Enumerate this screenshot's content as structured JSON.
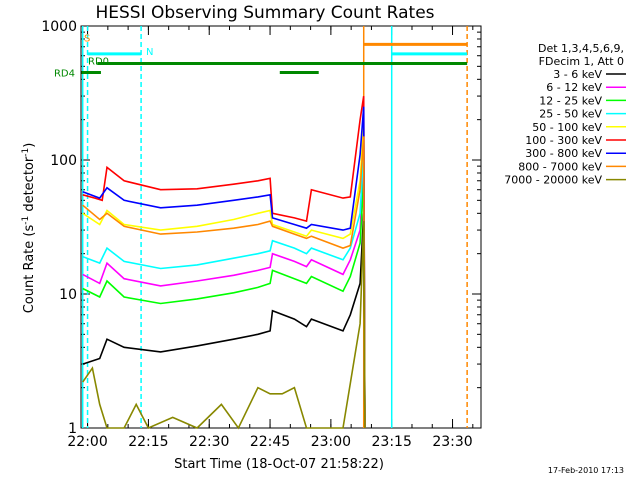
{
  "chart_data": {
    "type": "line",
    "title": "HESSI Observing Summary Count Rates",
    "xlabel": "Start Time (18-Oct-07 21:58:22)",
    "ylabel_main": "Count Rate (s",
    "ylabel_sup1": "-1",
    "ylabel_mid": " detector",
    "ylabel_sup2": "-1",
    "ylabel_end": ")",
    "y_scale": "log",
    "ylim": [
      1,
      1000
    ],
    "xlim": [
      21.973,
      23.617
    ],
    "x_ticks": [
      {
        "value": 22.0,
        "label": "22:00"
      },
      {
        "value": 22.25,
        "label": "22:15"
      },
      {
        "value": 22.5,
        "label": "22:30"
      },
      {
        "value": 22.75,
        "label": "22:45"
      },
      {
        "value": 23.0,
        "label": "23:00"
      },
      {
        "value": 23.25,
        "label": "23:15"
      },
      {
        "value": 23.5,
        "label": "23:30"
      }
    ],
    "y_ticks": [
      {
        "value": 1,
        "label": "1"
      },
      {
        "value": 10,
        "label": "10"
      },
      {
        "value": 100,
        "label": "100"
      },
      {
        "value": 1000,
        "label": "1000"
      }
    ],
    "legend_header": [
      "Det 1,3,4,5,6,9,",
      "FDecim 1, Att 0"
    ],
    "legend_position": "right",
    "series": [
      {
        "name": "3 - 6 keV",
        "color": "#000000",
        "points": [
          [
            21.98,
            3.0
          ],
          [
            22.05,
            3.3
          ],
          [
            22.08,
            4.6
          ],
          [
            22.15,
            4.0
          ],
          [
            22.3,
            3.7
          ],
          [
            22.45,
            4.1
          ],
          [
            22.6,
            4.6
          ],
          [
            22.7,
            5.0
          ],
          [
            22.75,
            5.3
          ],
          [
            22.76,
            7.5
          ],
          [
            22.85,
            6.5
          ],
          [
            22.9,
            5.7
          ],
          [
            22.92,
            6.5
          ],
          [
            23.05,
            5.3
          ],
          [
            23.08,
            7.0
          ],
          [
            23.12,
            12
          ],
          [
            23.135,
            40
          ],
          [
            23.14,
            1
          ]
        ]
      },
      {
        "name": "6 - 12 keV",
        "color": "#ff00ff",
        "points": [
          [
            21.98,
            14
          ],
          [
            22.05,
            12
          ],
          [
            22.08,
            17
          ],
          [
            22.15,
            13
          ],
          [
            22.3,
            11.5
          ],
          [
            22.45,
            12.5
          ],
          [
            22.6,
            13.8
          ],
          [
            22.7,
            15
          ],
          [
            22.75,
            15.8
          ],
          [
            22.76,
            20
          ],
          [
            22.85,
            17.5
          ],
          [
            22.9,
            16
          ],
          [
            22.92,
            18
          ],
          [
            23.05,
            14
          ],
          [
            23.08,
            18
          ],
          [
            23.12,
            30
          ],
          [
            23.135,
            90
          ],
          [
            23.14,
            1
          ]
        ]
      },
      {
        "name": "12 - 25 keV",
        "color": "#00ff00",
        "points": [
          [
            21.98,
            11
          ],
          [
            22.05,
            9.5
          ],
          [
            22.08,
            12.5
          ],
          [
            22.15,
            9.5
          ],
          [
            22.3,
            8.5
          ],
          [
            22.45,
            9.2
          ],
          [
            22.6,
            10.2
          ],
          [
            22.7,
            11.2
          ],
          [
            22.75,
            12
          ],
          [
            22.76,
            15
          ],
          [
            22.85,
            13
          ],
          [
            22.9,
            12
          ],
          [
            22.92,
            13.5
          ],
          [
            23.05,
            10.5
          ],
          [
            23.08,
            13.5
          ],
          [
            23.12,
            24
          ],
          [
            23.135,
            70
          ],
          [
            23.14,
            1
          ]
        ]
      },
      {
        "name": "25 - 50 keV",
        "color": "#00ffff",
        "points": [
          [
            21.98,
            19
          ],
          [
            22.05,
            17
          ],
          [
            22.08,
            22
          ],
          [
            22.15,
            17.5
          ],
          [
            22.3,
            15.5
          ],
          [
            22.45,
            16.5
          ],
          [
            22.6,
            18.5
          ],
          [
            22.7,
            20
          ],
          [
            22.75,
            21
          ],
          [
            22.76,
            25
          ],
          [
            22.85,
            22
          ],
          [
            22.9,
            20
          ],
          [
            22.92,
            22
          ],
          [
            23.05,
            18
          ],
          [
            23.08,
            22
          ],
          [
            23.12,
            40
          ],
          [
            23.135,
            120
          ],
          [
            23.14,
            1
          ]
        ]
      },
      {
        "name": "50 - 100 keV",
        "color": "#ffff00",
        "points": [
          [
            21.98,
            40
          ],
          [
            22.05,
            33
          ],
          [
            22.08,
            42
          ],
          [
            22.15,
            33
          ],
          [
            22.3,
            30
          ],
          [
            22.45,
            32
          ],
          [
            22.6,
            36
          ],
          [
            22.7,
            40
          ],
          [
            22.75,
            42
          ],
          [
            22.76,
            33
          ],
          [
            22.85,
            29
          ],
          [
            22.9,
            27
          ],
          [
            22.92,
            30
          ],
          [
            23.05,
            26
          ],
          [
            23.08,
            28
          ],
          [
            23.12,
            70
          ],
          [
            23.135,
            190
          ],
          [
            23.14,
            1
          ]
        ]
      },
      {
        "name": "100 - 300 keV",
        "color": "#ff0000",
        "points": [
          [
            21.98,
            55
          ],
          [
            22.03,
            52
          ],
          [
            22.06,
            50
          ],
          [
            22.08,
            88
          ],
          [
            22.15,
            70
          ],
          [
            22.3,
            60
          ],
          [
            22.45,
            61
          ],
          [
            22.6,
            66
          ],
          [
            22.7,
            70
          ],
          [
            22.75,
            73
          ],
          [
            22.76,
            40
          ],
          [
            22.85,
            37
          ],
          [
            22.9,
            35
          ],
          [
            22.92,
            60
          ],
          [
            23.05,
            52
          ],
          [
            23.08,
            53
          ],
          [
            23.12,
            200
          ],
          [
            23.135,
            300
          ],
          [
            23.14,
            1
          ]
        ]
      },
      {
        "name": "300 - 800 keV",
        "color": "#0000ff",
        "points": [
          [
            21.98,
            58
          ],
          [
            22.05,
            52
          ],
          [
            22.08,
            62
          ],
          [
            22.15,
            50
          ],
          [
            22.3,
            44
          ],
          [
            22.45,
            46
          ],
          [
            22.6,
            50
          ],
          [
            22.7,
            53
          ],
          [
            22.75,
            55
          ],
          [
            22.76,
            37
          ],
          [
            22.85,
            33
          ],
          [
            22.9,
            31
          ],
          [
            22.92,
            33
          ],
          [
            23.05,
            30
          ],
          [
            23.08,
            31
          ],
          [
            23.12,
            110
          ],
          [
            23.135,
            250
          ],
          [
            23.14,
            1
          ]
        ]
      },
      {
        "name": "800 - 7000 keV",
        "color": "#ff8800",
        "points": [
          [
            21.98,
            46
          ],
          [
            22.05,
            36
          ],
          [
            22.08,
            40
          ],
          [
            22.15,
            32
          ],
          [
            22.3,
            28
          ],
          [
            22.45,
            29
          ],
          [
            22.6,
            31
          ],
          [
            22.7,
            33
          ],
          [
            22.75,
            35
          ],
          [
            22.76,
            32
          ],
          [
            22.85,
            28
          ],
          [
            22.9,
            26
          ],
          [
            22.92,
            27
          ],
          [
            23.05,
            22
          ],
          [
            23.08,
            23
          ],
          [
            23.12,
            60
          ],
          [
            23.135,
            150
          ],
          [
            23.14,
            1
          ]
        ]
      },
      {
        "name": "7000 - 20000 keV",
        "color": "#888800",
        "points": [
          [
            21.98,
            2.2
          ],
          [
            22.02,
            2.8
          ],
          [
            22.05,
            1.5
          ],
          [
            22.08,
            1.0
          ],
          [
            22.15,
            1.0
          ],
          [
            22.2,
            1.5
          ],
          [
            22.25,
            1.0
          ],
          [
            22.35,
            1.2
          ],
          [
            22.45,
            1.0
          ],
          [
            22.55,
            1.5
          ],
          [
            22.62,
            1.0
          ],
          [
            22.7,
            2.0
          ],
          [
            22.75,
            1.8
          ],
          [
            22.8,
            1.8
          ],
          [
            22.85,
            2.0
          ],
          [
            22.9,
            1.0
          ],
          [
            23.05,
            1.0
          ],
          [
            23.12,
            6.0
          ],
          [
            23.135,
            35
          ],
          [
            23.14,
            1
          ]
        ]
      }
    ],
    "state_bars": [
      {
        "label": "S",
        "color": "#ff8800",
        "y": 730,
        "segments": [
          [
            23.135,
            23.56
          ]
        ]
      },
      {
        "label": "N",
        "color": "#00ffff",
        "y": 620,
        "segments": [
          [
            22.0,
            22.22
          ],
          [
            23.25,
            23.56
          ]
        ]
      },
      {
        "label": "RD0",
        "color": "#008800",
        "y": 525,
        "segments": [
          [
            22.04,
            23.56
          ]
        ]
      },
      {
        "label": "RD4",
        "color": "#008800",
        "y": 450,
        "segments": [
          [
            21.975,
            22.055
          ],
          [
            22.79,
            22.95
          ]
        ]
      }
    ],
    "vlines": [
      {
        "x": 21.98,
        "color": "#00ffff",
        "dashed": false
      },
      {
        "x": 22.0,
        "color": "#00ffff",
        "dashed": true
      },
      {
        "x": 22.22,
        "color": "#00ffff",
        "dashed": true
      },
      {
        "x": 23.135,
        "color": "#ff8800",
        "dashed": false
      },
      {
        "x": 23.25,
        "color": "#00ffff",
        "dashed": false
      },
      {
        "x": 23.56,
        "color": "#ff8800",
        "dashed": true
      }
    ]
  },
  "footer": {
    "timestamp": "17-Feb-2010 17:13"
  }
}
